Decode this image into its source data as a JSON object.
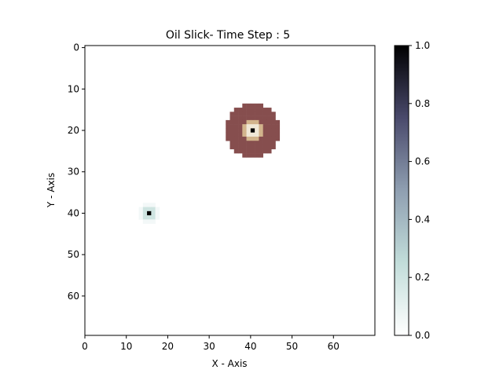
{
  "chart_data": {
    "type": "heatmap",
    "title": "Oil Slick- Time Step : 5",
    "xlabel": "X - Axis",
    "ylabel": "Y - Axis",
    "grid_size": [
      70,
      70
    ],
    "xlim": [
      0,
      70
    ],
    "ylim": [
      70,
      0
    ],
    "x_ticks": [
      0,
      10,
      20,
      30,
      40,
      50,
      60
    ],
    "y_ticks": [
      0,
      10,
      20,
      30,
      40,
      50,
      60
    ],
    "grid": false,
    "slicks": [
      {
        "center": [
          40,
          20
        ],
        "colormap": "pink",
        "layers": [
          {
            "radius": 6.5,
            "value": 0.35
          },
          {
            "radius": 2.5,
            "value": 0.7
          },
          {
            "radius": 1.5,
            "value": 0.85
          },
          {
            "radius": 0.5,
            "value": 1.0
          }
        ],
        "center_marker": "black"
      },
      {
        "center": [
          15,
          40
        ],
        "colormap": "bone_r",
        "layers": [
          {
            "radius": 2.3,
            "value": 0.05
          },
          {
            "radius": 1.6,
            "value": 0.2
          },
          {
            "radius": 0.9,
            "value": 0.55
          },
          {
            "radius": 0.5,
            "value": 1.0
          }
        ]
      }
    ],
    "colorbar": {
      "colormap": "bone_r",
      "range": [
        0.0,
        1.0
      ],
      "ticks": [
        0.0,
        0.2,
        0.4,
        0.6,
        0.8,
        1.0
      ],
      "tick_labels": [
        "0.0",
        "0.2",
        "0.4",
        "0.6",
        "0.8",
        "1.0"
      ]
    }
  }
}
